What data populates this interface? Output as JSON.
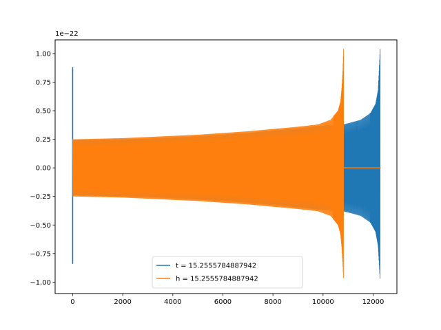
{
  "chart_data": {
    "type": "line",
    "title": "",
    "xlabel": "",
    "ylabel": "",
    "y_offset_text": "1e−22",
    "xlim": [
      -700,
      12950
    ],
    "ylim": [
      -1.1,
      1.12
    ],
    "xticks": [
      0,
      2000,
      4000,
      6000,
      8000,
      10000,
      12000
    ],
    "xtick_labels": [
      "0",
      "2000",
      "4000",
      "6000",
      "8000",
      "10000",
      "12000"
    ],
    "yticks": [
      -1.0,
      -0.75,
      -0.5,
      -0.25,
      0.0,
      0.25,
      0.5,
      0.75,
      1.0
    ],
    "ytick_labels": [
      "−1.00",
      "−0.75",
      "−0.50",
      "−0.25",
      "0.00",
      "0.25",
      "0.50",
      "0.75",
      "1.00"
    ],
    "grid": false,
    "legend_position": "lower-center",
    "series": [
      {
        "name": "t = 15.2555784887942",
        "color": "#1f77b4",
        "envelope": {
          "x": [
            0,
            1000,
            2000,
            3000,
            4000,
            5000,
            6000,
            7000,
            8000,
            9000,
            10000,
            10800,
            11000,
            11500,
            11900,
            12100,
            12200,
            12240,
            12280
          ],
          "upper": [
            0.24,
            0.245,
            0.25,
            0.255,
            0.265,
            0.275,
            0.29,
            0.305,
            0.325,
            0.345,
            0.37,
            0.38,
            0.39,
            0.42,
            0.48,
            0.56,
            0.68,
            0.85,
            1.04
          ],
          "lower": [
            -0.24,
            -0.245,
            -0.25,
            -0.255,
            -0.265,
            -0.275,
            -0.29,
            -0.305,
            -0.325,
            -0.345,
            -0.37,
            -0.38,
            -0.39,
            -0.42,
            -0.48,
            -0.56,
            -0.68,
            -0.83,
            -0.99
          ]
        },
        "spike": {
          "x": 0,
          "max": 0.88,
          "min": -0.84
        },
        "end_x": 12300
      },
      {
        "name": "h = 15.2555784887942",
        "color": "#ff7f0e",
        "envelope": {
          "x": [
            0,
            1000,
            2000,
            3000,
            4000,
            5000,
            6000,
            7000,
            8000,
            9000,
            9800,
            10300,
            10600,
            10700,
            10750,
            10790,
            10820
          ],
          "upper": [
            0.25,
            0.255,
            0.26,
            0.27,
            0.28,
            0.29,
            0.305,
            0.32,
            0.34,
            0.36,
            0.38,
            0.42,
            0.5,
            0.58,
            0.7,
            0.85,
            1.04
          ],
          "lower": [
            -0.25,
            -0.255,
            -0.26,
            -0.27,
            -0.28,
            -0.29,
            -0.305,
            -0.32,
            -0.34,
            -0.36,
            -0.38,
            -0.42,
            -0.5,
            -0.58,
            -0.7,
            -0.84,
            -0.99
          ]
        },
        "flat_after": {
          "from": 10830,
          "to": 12300,
          "value": 0.0
        }
      }
    ]
  }
}
